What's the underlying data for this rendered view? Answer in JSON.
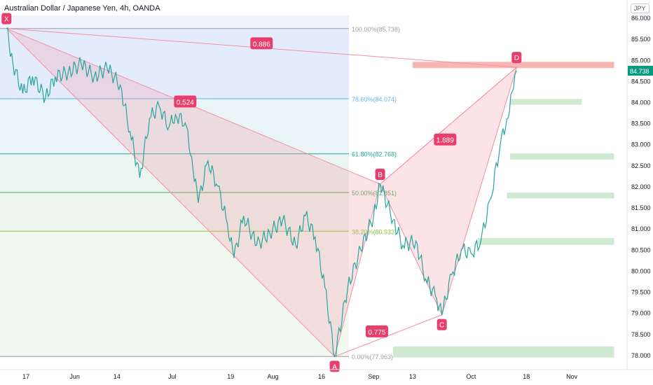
{
  "header": {
    "title": "Australian Dollar / Japanese Yen, 4h, OANDA",
    "currency": "JPY"
  },
  "chart_data": {
    "type": "line",
    "title": "Australian Dollar / Japanese Yen, 4h, OANDA",
    "ylim": [
      77.85,
      86.05
    ],
    "y_ticks": [
      "78.000",
      "78.500",
      "79.000",
      "79.500",
      "80.000",
      "80.500",
      "81.000",
      "81.500",
      "82.000",
      "82.500",
      "83.000",
      "83.500",
      "84.000",
      "84.500",
      "85.000",
      "85.500",
      "86.000"
    ],
    "x_ticks": [
      "17",
      "Jun",
      "14",
      "Jul",
      "19",
      "Aug",
      "16",
      "Sep",
      "13",
      "Oct",
      "18",
      "Nov"
    ],
    "last_price": "84.738",
    "colors": {
      "up": "#26a69a",
      "down": "#ef5350",
      "pattern": "#f48fa3",
      "badge": "#e83e6c",
      "price": "#089981"
    },
    "fib_levels": [
      {
        "label": "100.00%(85.738)",
        "value": 85.738,
        "color": "#9aa0a6"
      },
      {
        "label": "78.60%(84.074)",
        "value": 84.074,
        "color": "#64b5f6"
      },
      {
        "label": "61.80%(82.768)",
        "value": 82.768,
        "color": "#26a69a"
      },
      {
        "label": "50.00%(81.851)",
        "value": 81.851,
        "color": "#4caf50"
      },
      {
        "label": "38.20%(80.933)",
        "value": 80.933,
        "color": "#8bc34a"
      },
      {
        "label": "0.00%(77.963)",
        "value": 77.963,
        "color": "#9aa0a6"
      }
    ],
    "pattern_points": [
      {
        "label": "X",
        "x": "2021-05-11",
        "y": 85.74
      },
      {
        "label": "A",
        "x": "2021-08-20",
        "y": 77.96
      },
      {
        "label": "B",
        "x": "2021-09-03",
        "y": 82.05
      },
      {
        "label": "C",
        "x": "2021-09-22",
        "y": 78.95
      },
      {
        "label": "D",
        "x": "2021-10-15",
        "y": 84.82
      }
    ],
    "ratios": [
      "0.886",
      "0.524",
      "1.889",
      "0.775"
    ],
    "price_series": [
      [
        "2021-05-11",
        85.74
      ],
      [
        "2021-05-13",
        84.9
      ],
      [
        "2021-05-16",
        84.2
      ],
      [
        "2021-05-19",
        84.6
      ],
      [
        "2021-05-23",
        84.1
      ],
      [
        "2021-05-26",
        84.6
      ],
      [
        "2021-05-30",
        84.7
      ],
      [
        "2021-06-03",
        84.9
      ],
      [
        "2021-06-07",
        84.6
      ],
      [
        "2021-06-11",
        84.8
      ],
      [
        "2021-06-15",
        84.4
      ],
      [
        "2021-06-18",
        83.3
      ],
      [
        "2021-06-21",
        82.2
      ],
      [
        "2021-06-24",
        83.6
      ],
      [
        "2021-06-27",
        83.9
      ],
      [
        "2021-06-30",
        83.4
      ],
      [
        "2021-07-02",
        83.7
      ],
      [
        "2021-07-05",
        83.5
      ],
      [
        "2021-07-07",
        82.7
      ],
      [
        "2021-07-09",
        81.6
      ],
      [
        "2021-07-12",
        82.6
      ],
      [
        "2021-07-15",
        82.0
      ],
      [
        "2021-07-18",
        81.1
      ],
      [
        "2021-07-20",
        80.3
      ],
      [
        "2021-07-23",
        81.3
      ],
      [
        "2021-07-27",
        80.6
      ],
      [
        "2021-07-31",
        80.9
      ],
      [
        "2021-08-04",
        81.2
      ],
      [
        "2021-08-08",
        80.6
      ],
      [
        "2021-08-11",
        81.3
      ],
      [
        "2021-08-14",
        80.8
      ],
      [
        "2021-08-17",
        79.6
      ],
      [
        "2021-08-20",
        77.96
      ],
      [
        "2021-08-24",
        79.6
      ],
      [
        "2021-08-28",
        80.5
      ],
      [
        "2021-09-01",
        81.3
      ],
      [
        "2021-09-03",
        82.05
      ],
      [
        "2021-09-07",
        81.2
      ],
      [
        "2021-09-10",
        80.6
      ],
      [
        "2021-09-14",
        80.7
      ],
      [
        "2021-09-17",
        79.8
      ],
      [
        "2021-09-20",
        79.4
      ],
      [
        "2021-09-22",
        78.95
      ],
      [
        "2021-09-25",
        79.9
      ],
      [
        "2021-09-28",
        80.5
      ],
      [
        "2021-10-01",
        80.4
      ],
      [
        "2021-10-04",
        80.7
      ],
      [
        "2021-10-07",
        81.7
      ],
      [
        "2021-10-10",
        83.0
      ],
      [
        "2021-10-12",
        83.6
      ],
      [
        "2021-10-14",
        84.3
      ],
      [
        "2021-10-15",
        84.74
      ]
    ],
    "zones": [
      {
        "name": "upper-resistance",
        "from": "2021-09-13",
        "to": "2021-11-14",
        "low": 84.8,
        "high": 84.95,
        "color": "#f7a9a5"
      },
      {
        "name": "support-1",
        "from": "2021-10-13",
        "to": "2021-11-04",
        "low": 83.93,
        "high": 84.07,
        "color": "#c8e6c9"
      },
      {
        "name": "support-2",
        "from": "2021-10-13",
        "to": "2021-11-14",
        "low": 82.63,
        "high": 82.78,
        "color": "#c8e6c9"
      },
      {
        "name": "support-3",
        "from": "2021-10-12",
        "to": "2021-11-14",
        "low": 81.71,
        "high": 81.85,
        "color": "#c8e6c9"
      },
      {
        "name": "support-4",
        "from": "2021-10-03",
        "to": "2021-11-14",
        "low": 80.61,
        "high": 80.77,
        "color": "#c8e6c9"
      },
      {
        "name": "support-5",
        "from": "2021-09-07",
        "to": "2021-11-14",
        "low": 77.94,
        "high": 78.2,
        "color": "#c8e6c9"
      }
    ]
  }
}
